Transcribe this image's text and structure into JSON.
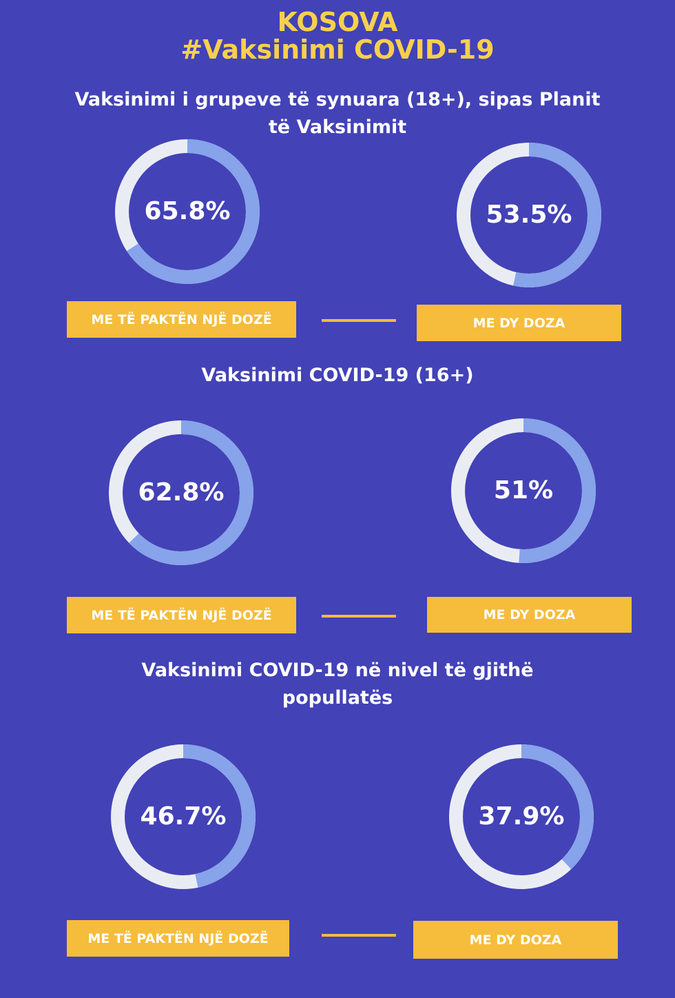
{
  "title": [
    "KOSOVA",
    "#Vaksinimi COVID-19"
  ],
  "sections": [
    {
      "heading": "Vaksinimi i grupeve të synuara (18+), sipas Planit të Vaksinimit",
      "items": [
        {
          "label": "ME TË PAKTËN NJË DOZË",
          "value": 65.8,
          "value_label": "65.8%"
        },
        {
          "label": "ME DY DOZA",
          "value": 53.5,
          "value_label": "53.5%"
        }
      ]
    },
    {
      "heading": "Vaksinimi COVID-19 (16+)",
      "items": [
        {
          "label": "ME TË PAKTËN NJË DOZË",
          "value": 62.8,
          "value_label": "62.8%"
        },
        {
          "label": "ME DY DOZA",
          "value": 51,
          "value_label": "51%"
        }
      ]
    },
    {
      "heading": "Vaksinimi COVID-19 në nivel të gjithë popullatës",
      "items": [
        {
          "label": "ME TË PAKTËN NJË DOZË",
          "value": 46.7,
          "value_label": "46.7%"
        },
        {
          "label": "ME DY DOZA",
          "value": 37.9,
          "value_label": "37.9%"
        }
      ]
    }
  ]
}
